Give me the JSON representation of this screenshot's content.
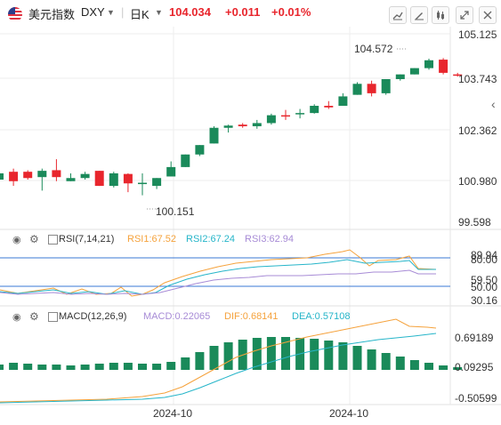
{
  "header": {
    "symbol_name": "美元指数",
    "symbol_code": "DXY",
    "interval": "日K",
    "price": "104.034",
    "change": "+0.011",
    "change_pct": "+0.01%"
  },
  "colors": {
    "up": "#1a8a5a",
    "down": "#e8262d",
    "accent": "#f5a23c",
    "teal": "#26b5c9",
    "purple": "#a78bd6",
    "blue": "#3a78d6"
  },
  "icons": [
    "us-flag-icon",
    "dropdown-icon",
    "dropdown-icon",
    "toolbar-icon-1",
    "toolbar-icon-2",
    "toolbar-icon-3",
    "expand-icon",
    "settings-icon"
  ],
  "price_axis": {
    "labels": [
      "105.125",
      "103.743",
      "102.362",
      "100.980",
      "99.598"
    ]
  },
  "price_annotations": {
    "high": "104.572",
    "low": "100.151"
  },
  "rsi": {
    "title": "RSI(7,14,21)",
    "rsi1": "RSI1:67.52",
    "rsi2": "RSI2:67.24",
    "rsi3": "RSI3:62.94",
    "axis_labels": [
      "89.94",
      "80.00",
      "59.50",
      "50.00",
      "30.16"
    ]
  },
  "macd": {
    "title": "MACD(12,26,9)",
    "macd": "MACD:0.22065",
    "dif": "DIF:0.68141",
    "dea": "DEA:0.57108",
    "axis_labels": [
      "0.69189",
      "0.09295",
      "-0.50599"
    ]
  },
  "time_axis": {
    "labels": [
      "2024-10",
      "2024-10"
    ]
  },
  "chart_data": {
    "type": "candlestick",
    "series": [
      {
        "o": 100.7,
        "h": 100.9,
        "c": 100.9,
        "l": 100.5
      },
      {
        "o": 100.95,
        "h": 101.05,
        "c": 100.65,
        "l": 100.5
      },
      {
        "o": 100.95,
        "h": 101.0,
        "c": 100.75,
        "l": 100.7
      },
      {
        "o": 100.78,
        "h": 101.05,
        "c": 100.98,
        "l": 100.35
      },
      {
        "o": 101.0,
        "h": 101.35,
        "c": 100.78,
        "l": 100.65
      },
      {
        "o": 100.65,
        "h": 100.9,
        "c": 100.75,
        "l": 100.65
      },
      {
        "o": 100.75,
        "h": 100.95,
        "c": 100.88,
        "l": 100.7
      },
      {
        "o": 100.98,
        "h": 100.98,
        "c": 100.5,
        "l": 100.5
      },
      {
        "o": 100.5,
        "h": 100.95,
        "c": 100.9,
        "l": 100.45
      },
      {
        "o": 100.88,
        "h": 100.9,
        "c": 100.58,
        "l": 100.3
      },
      {
        "o": 100.58,
        "h": 100.9,
        "c": 100.6,
        "l": 100.2
      },
      {
        "o": 100.5,
        "h": 100.75,
        "c": 100.75,
        "l": 100.4
      },
      {
        "o": 100.8,
        "h": 101.28,
        "c": 101.1,
        "l": 100.8
      },
      {
        "o": 101.1,
        "h": 101.5,
        "c": 101.5,
        "l": 101.1
      },
      {
        "o": 101.5,
        "h": 101.8,
        "c": 101.8,
        "l": 101.45
      },
      {
        "o": 101.85,
        "h": 102.4,
        "c": 102.35,
        "l": 101.85
      },
      {
        "o": 102.35,
        "h": 102.45,
        "c": 102.42,
        "l": 102.2
      },
      {
        "o": 102.45,
        "h": 102.5,
        "c": 102.4,
        "l": 102.35
      },
      {
        "o": 102.4,
        "h": 102.6,
        "c": 102.5,
        "l": 102.32
      },
      {
        "o": 102.5,
        "h": 102.8,
        "c": 102.75,
        "l": 102.45
      },
      {
        "o": 102.75,
        "h": 102.92,
        "c": 102.72,
        "l": 102.6
      },
      {
        "o": 102.8,
        "h": 102.95,
        "c": 102.82,
        "l": 102.65
      },
      {
        "o": 102.82,
        "h": 103.1,
        "c": 103.05,
        "l": 102.8
      },
      {
        "o": 103.05,
        "h": 103.2,
        "c": 103.0,
        "l": 102.95
      },
      {
        "o": 103.05,
        "h": 103.45,
        "c": 103.35,
        "l": 103.05
      },
      {
        "o": 103.4,
        "h": 103.8,
        "c": 103.75,
        "l": 103.4
      },
      {
        "o": 103.75,
        "h": 103.85,
        "c": 103.45,
        "l": 103.35
      },
      {
        "o": 103.45,
        "h": 103.9,
        "c": 103.9,
        "l": 103.4
      },
      {
        "o": 103.9,
        "h": 104.05,
        "c": 104.05,
        "l": 103.85
      },
      {
        "o": 104.05,
        "h": 104.25,
        "c": 104.25,
        "l": 104.05
      },
      {
        "o": 104.25,
        "h": 104.55,
        "c": 104.5,
        "l": 104.2
      },
      {
        "o": 104.52,
        "h": 104.57,
        "c": 104.1,
        "l": 104.05
      },
      {
        "o": 104.05,
        "h": 104.1,
        "c": 104.03,
        "l": 103.98
      }
    ],
    "ylim": [
      99.2,
      105.4
    ]
  }
}
